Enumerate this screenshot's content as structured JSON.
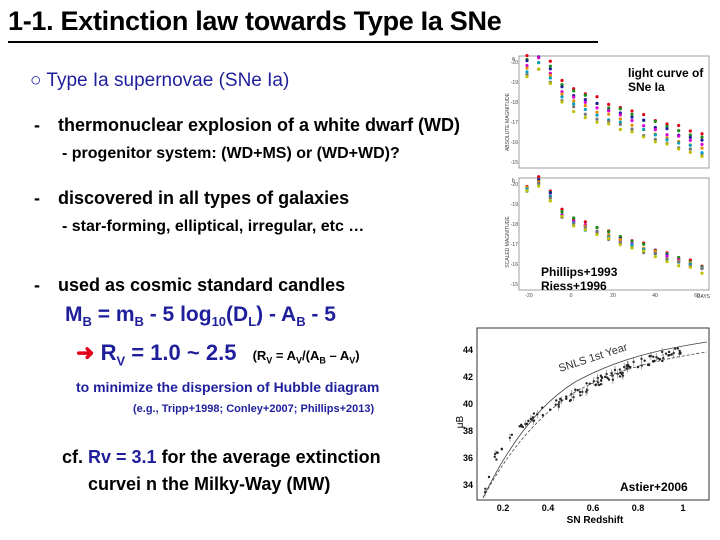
{
  "title": "1-1. Extinction law towards Type Ia SNe",
  "heading": {
    "marker": "○",
    "text": "Type Ia supernovae (SNe Ia)"
  },
  "bullets": [
    {
      "dash": "-",
      "text": "thermonuclear explosion of a white dwarf (WD)",
      "sub": "- progenitor system:  (WD+MS) or (WD+WD)?"
    },
    {
      "dash": "-",
      "text": "discovered in all types of galaxies",
      "sub": "- star-forming, elliptical, irregular, etc …"
    },
    {
      "dash": "-",
      "text": "used as cosmic standard candles",
      "sub": ""
    }
  ],
  "equation1": {
    "m1": "M",
    "s1": "B",
    "m2": " = m",
    "s2": "B",
    "m3": " - 5 log",
    "s3": "10",
    "m4": "(D",
    "s4": "L",
    "m5": ") - A",
    "s5": "B",
    "m6": " - 5"
  },
  "equation2": {
    "arrow": "➜",
    "r": "R",
    "rs": "V",
    "rest": " = 1.0 ~ 2.5",
    "def_open": "(R",
    "def_rs": "V",
    "def_mid": " = A",
    "def_as": "V",
    "def_mid2": "/(A",
    "def_bs": "B",
    "def_mid3": " – A",
    "def_vs": "V",
    "def_close": ")"
  },
  "minimize": "to minimize the dispersion of Hubble diagram",
  "refs": "(e.g., Tripp+1998; Conley+2007; Phillips+2013)",
  "cf": {
    "pre": "cf. ",
    "r": "Rv = 3.1",
    "post": " for the average extinction",
    "line2": "curvei n the Milky-Way (MW)"
  },
  "light_curve_label": "light curve of SNe Ia",
  "phillips_label": "Phillips+1993 Riess+1996",
  "astier_label": "Astier+2006",
  "lc_panel": {
    "ylabel_top": "ABSOLUTE MAGNITUDE",
    "ylabel_bottom": "SCALED MAGNITUDE",
    "xlabel": "DAYS",
    "panel_a": "a",
    "panel_b": "b",
    "yticks_top": [
      "-20",
      "-19",
      "-18",
      "-17",
      "-16",
      "-15"
    ],
    "yticks_bottom": [
      "-20",
      "-19",
      "-18",
      "-17",
      "-16",
      "-15"
    ],
    "xticks": [
      "-20",
      "0",
      "20",
      "40",
      "60"
    ]
  },
  "hubble": {
    "ylabel": "μB",
    "xlabel": "SN Redshift",
    "survey": "SNLS 1st Year",
    "yticks": [
      "44",
      "42",
      "40",
      "38",
      "36",
      "34"
    ],
    "xticks": [
      "0.2",
      "0.4",
      "0.6",
      "0.8",
      "1"
    ]
  },
  "colors": {
    "blue": "#1f1f9c",
    "red": "#e3001a"
  }
}
